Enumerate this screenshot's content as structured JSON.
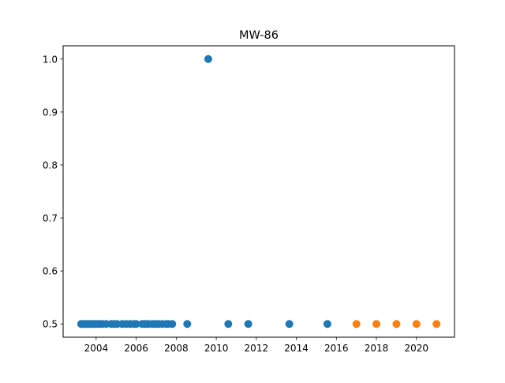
{
  "chart_data": {
    "type": "scatter",
    "title": "MW-86",
    "xlabel": "",
    "ylabel": "",
    "xlim": [
      2002.35,
      2021.9
    ],
    "ylim": [
      0.475,
      1.025
    ],
    "xticks": [
      2004,
      2006,
      2008,
      2010,
      2012,
      2014,
      2016,
      2018,
      2020
    ],
    "yticks": [
      0.5,
      0.6,
      0.7,
      0.8,
      0.9,
      1.0
    ],
    "ytick_labels": [
      "0.5",
      "0.6",
      "0.7",
      "0.8",
      "0.9",
      "1.0"
    ],
    "grid": false,
    "legend": false,
    "series": [
      {
        "color": "#1f77b4",
        "x": [
          2003.25,
          2003.35,
          2003.45,
          2003.55,
          2003.62,
          2003.7,
          2003.78,
          2003.88,
          2004.0,
          2004.15,
          2004.3,
          2004.5,
          2004.75,
          2004.9,
          2005.05,
          2005.3,
          2005.5,
          2005.7,
          2005.9,
          2006.0,
          2006.3,
          2006.45,
          2006.6,
          2006.8,
          2006.95,
          2007.1,
          2007.3,
          2007.5,
          2007.6,
          2007.8,
          2008.55,
          2009.6,
          2010.6,
          2011.6,
          2013.65,
          2015.55
        ],
        "y": [
          0.5,
          0.5,
          0.5,
          0.5,
          0.5,
          0.5,
          0.5,
          0.5,
          0.5,
          0.5,
          0.5,
          0.5,
          0.5,
          0.5,
          0.5,
          0.5,
          0.5,
          0.5,
          0.5,
          0.5,
          0.5,
          0.5,
          0.5,
          0.5,
          0.5,
          0.5,
          0.5,
          0.5,
          0.5,
          0.5,
          0.5,
          1.0,
          0.5,
          0.5,
          0.5,
          0.5
        ]
      },
      {
        "color": "#ff7f0e",
        "x": [
          2017.0,
          2018.0,
          2019.0,
          2020.0,
          2021.0
        ],
        "y": [
          0.5,
          0.5,
          0.5,
          0.5,
          0.5
        ]
      }
    ]
  }
}
